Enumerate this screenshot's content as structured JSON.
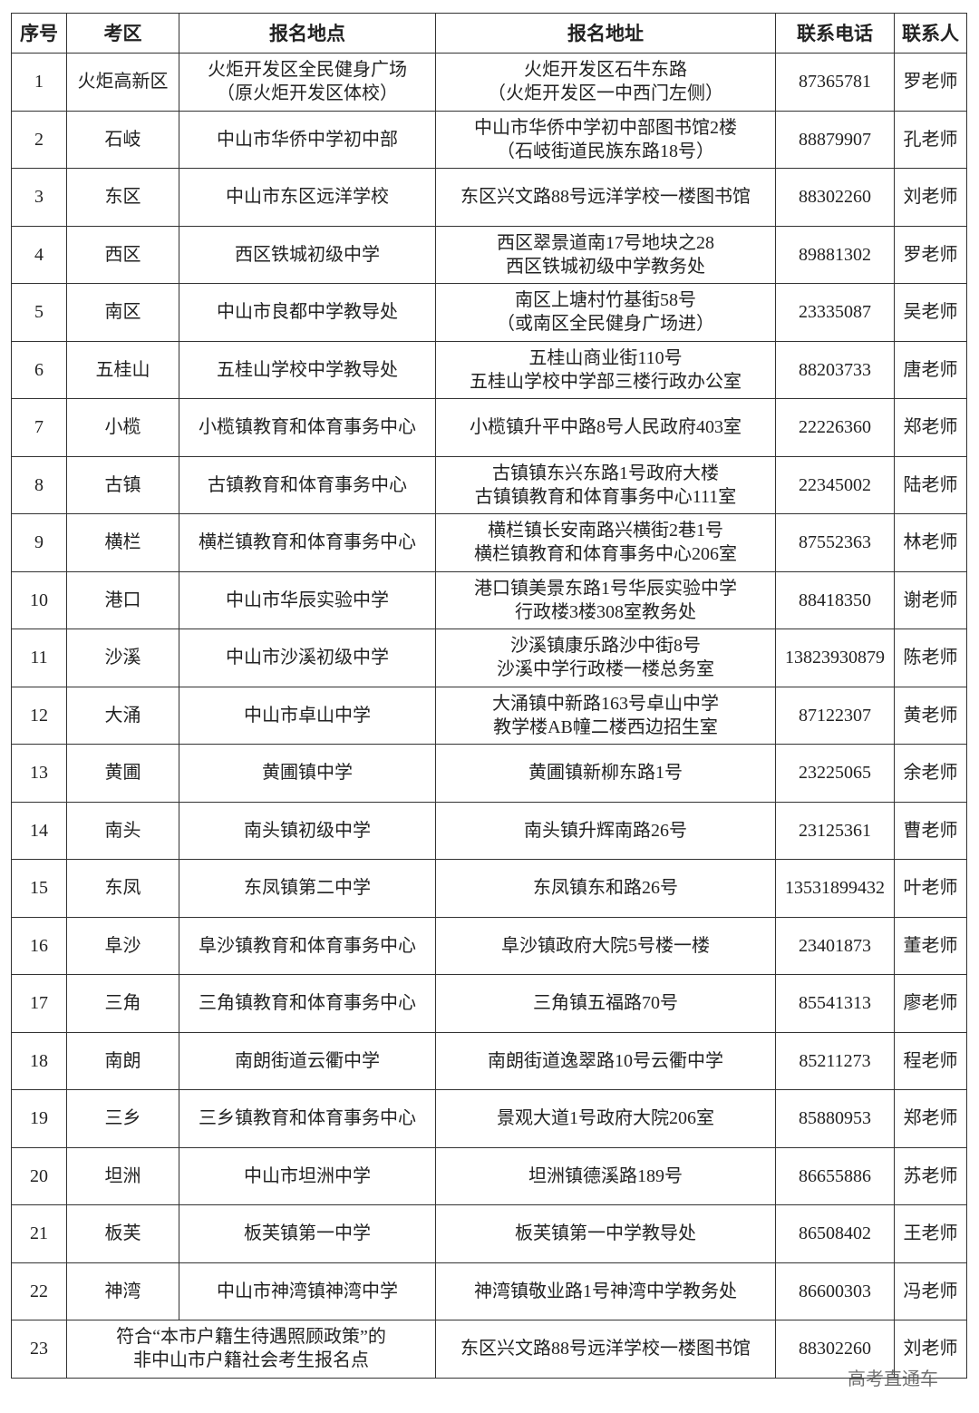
{
  "table": {
    "headers": [
      "序号",
      "考区",
      "报名地点",
      "报名地址",
      "联系电话",
      "联系人"
    ],
    "rows": [
      {
        "no": "1",
        "area": "火炬高新区",
        "place": [
          "火炬开发区全民健身广场",
          "（原火炬开发区体校）"
        ],
        "address": [
          "火炬开发区石牛东路",
          "（火炬开发区一中西门左侧）"
        ],
        "phone": "87365781",
        "contact": "罗老师"
      },
      {
        "no": "2",
        "area": "石岐",
        "place": [
          "中山市华侨中学初中部"
        ],
        "address": [
          "中山市华侨中学初中部图书馆2楼",
          "（石岐街道民族东路18号）"
        ],
        "phone": "88879907",
        "contact": "孔老师"
      },
      {
        "no": "3",
        "area": "东区",
        "place": [
          "中山市东区远洋学校"
        ],
        "address": [
          "东区兴文路88号远洋学校一楼图书馆"
        ],
        "phone": "88302260",
        "contact": "刘老师"
      },
      {
        "no": "4",
        "area": "西区",
        "place": [
          "西区铁城初级中学"
        ],
        "address": [
          "西区翠景道南17号地块之28",
          "西区铁城初级中学教务处"
        ],
        "phone": "89881302",
        "contact": "罗老师"
      },
      {
        "no": "5",
        "area": "南区",
        "place": [
          "中山市良都中学教导处"
        ],
        "address": [
          "南区上塘村竹基街58号",
          "（或南区全民健身广场进）"
        ],
        "phone": "23335087",
        "contact": "吴老师"
      },
      {
        "no": "6",
        "area": "五桂山",
        "place": [
          "五桂山学校中学教导处"
        ],
        "address": [
          "五桂山商业街110号",
          "五桂山学校中学部三楼行政办公室"
        ],
        "phone": "88203733",
        "contact": "唐老师"
      },
      {
        "no": "7",
        "area": "小榄",
        "place": [
          "小榄镇教育和体育事务中心"
        ],
        "address": [
          "小榄镇升平中路8号人民政府403室"
        ],
        "phone": "22226360",
        "contact": "郑老师"
      },
      {
        "no": "8",
        "area": "古镇",
        "place": [
          "古镇教育和体育事务中心"
        ],
        "address": [
          "古镇镇东兴东路1号政府大楼",
          "古镇镇教育和体育事务中心111室"
        ],
        "phone": "22345002",
        "contact": "陆老师"
      },
      {
        "no": "9",
        "area": "横栏",
        "place": [
          "横栏镇教育和体育事务中心"
        ],
        "address": [
          "横栏镇长安南路兴横街2巷1号",
          "横栏镇教育和体育事务中心206室"
        ],
        "phone": "87552363",
        "contact": "林老师"
      },
      {
        "no": "10",
        "area": "港口",
        "place": [
          "中山市华辰实验中学"
        ],
        "address": [
          "港口镇美景东路1号华辰实验中学",
          "行政楼3楼308室教务处"
        ],
        "phone": "88418350",
        "contact": "谢老师"
      },
      {
        "no": "11",
        "area": "沙溪",
        "place": [
          "中山市沙溪初级中学"
        ],
        "address": [
          "沙溪镇康乐路沙中街8号",
          "沙溪中学行政楼一楼总务室"
        ],
        "phone": "13823930879",
        "contact": "陈老师"
      },
      {
        "no": "12",
        "area": "大涌",
        "place": [
          "中山市卓山中学"
        ],
        "address": [
          "大涌镇中新路163号卓山中学",
          "教学楼AB幢二楼西边招生室"
        ],
        "phone": "87122307",
        "contact": "黄老师"
      },
      {
        "no": "13",
        "area": "黄圃",
        "place": [
          "黄圃镇中学"
        ],
        "address": [
          "黄圃镇新柳东路1号"
        ],
        "phone": "23225065",
        "contact": "余老师"
      },
      {
        "no": "14",
        "area": "南头",
        "place": [
          "南头镇初级中学"
        ],
        "address": [
          "南头镇升辉南路26号"
        ],
        "phone": "23125361",
        "contact": "曹老师"
      },
      {
        "no": "15",
        "area": "东凤",
        "place": [
          "东凤镇第二中学"
        ],
        "address": [
          "东凤镇东和路26号"
        ],
        "phone": "13531899432",
        "contact": "叶老师"
      },
      {
        "no": "16",
        "area": "阜沙",
        "place": [
          "阜沙镇教育和体育事务中心"
        ],
        "address": [
          "阜沙镇政府大院5号楼一楼"
        ],
        "phone": "23401873",
        "contact": "董老师"
      },
      {
        "no": "17",
        "area": "三角",
        "place": [
          "三角镇教育和体育事务中心"
        ],
        "address": [
          "三角镇五福路70号"
        ],
        "phone": "85541313",
        "contact": "廖老师"
      },
      {
        "no": "18",
        "area": "南朗",
        "place": [
          "南朗街道云衢中学"
        ],
        "address": [
          "南朗街道逸翠路10号云衢中学"
        ],
        "phone": "85211273",
        "contact": "程老师"
      },
      {
        "no": "19",
        "area": "三乡",
        "place": [
          "三乡镇教育和体育事务中心"
        ],
        "address": [
          "景观大道1号政府大院206室"
        ],
        "phone": "85880953",
        "contact": "郑老师"
      },
      {
        "no": "20",
        "area": "坦洲",
        "place": [
          "中山市坦洲中学"
        ],
        "address": [
          "坦洲镇德溪路189号"
        ],
        "phone": "86655886",
        "contact": "苏老师"
      },
      {
        "no": "21",
        "area": "板芙",
        "place": [
          "板芙镇第一中学"
        ],
        "address": [
          "板芙镇第一中学教导处"
        ],
        "phone": "86508402",
        "contact": "王老师"
      },
      {
        "no": "22",
        "area": "神湾",
        "place": [
          "中山市神湾镇神湾中学"
        ],
        "address": [
          "神湾镇敬业路1号神湾中学教务处"
        ],
        "phone": "86600303",
        "contact": "冯老师"
      }
    ],
    "last_row": {
      "no": "23",
      "place": [
        "符合“本市户籍生待遇照顾政策”的",
        "非中山市户籍社会考生报名点"
      ],
      "address": [
        "东区兴文路88号远洋学校一楼图书馆"
      ],
      "phone": "88302260",
      "contact": "刘老师"
    }
  },
  "watermark": "高考直通车"
}
